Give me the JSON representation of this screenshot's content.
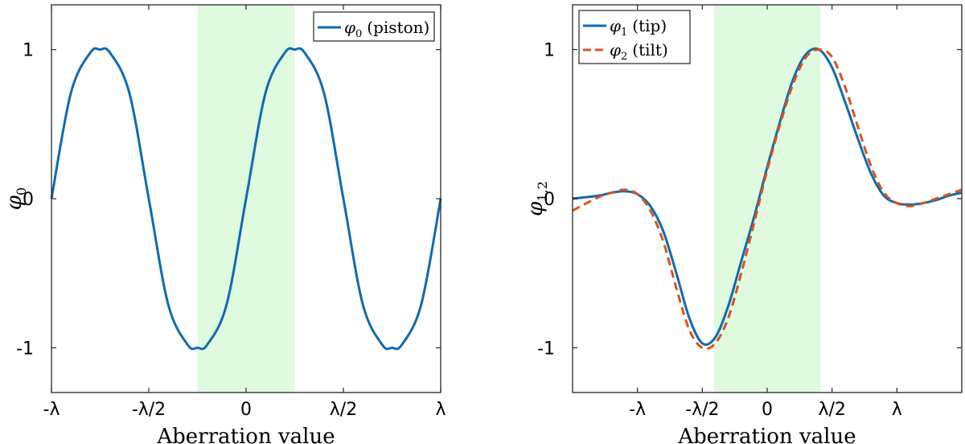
{
  "chart_data": [
    {
      "type": "line",
      "id": "left",
      "xlabel": "Aberration value",
      "ylabel": {
        "symbol": "φ",
        "sub": "0"
      },
      "xlim": [
        -1,
        1
      ],
      "ylim": [
        -1.3,
        1.3
      ],
      "xticks": [
        {
          "value": -1,
          "label": "-λ"
        },
        {
          "value": -0.5,
          "label": "-λ/2"
        },
        {
          "value": 0,
          "label": "0"
        },
        {
          "value": 0.5,
          "label": "λ/2"
        },
        {
          "value": 1,
          "label": "λ"
        }
      ],
      "yticks": [
        {
          "value": -1,
          "label": "-1"
        },
        {
          "value": 0,
          "label": "0"
        },
        {
          "value": 1,
          "label": "1"
        }
      ],
      "shaded_region": {
        "x0": -0.25,
        "x1": 0.25,
        "color": "#e0fae0"
      },
      "legend": {
        "position": "top-right"
      },
      "series": [
        {
          "name": "piston",
          "legend_symbol": "φ",
          "legend_sub": "0",
          "legend_text": "(piston)",
          "color": "#0e6bb0",
          "dash": "solid",
          "x": [
            -1.0,
            -0.9,
            -0.8,
            -0.75,
            -0.7,
            -0.6,
            -0.5,
            -0.4,
            -0.3,
            -0.25,
            -0.2,
            -0.1,
            0.0,
            0.1,
            0.2,
            0.25,
            0.3,
            0.4,
            0.5,
            0.6,
            0.7,
            0.75,
            0.8,
            0.9,
            1.0
          ],
          "y": [
            0.0,
            0.71,
            0.98,
            1.0,
            0.98,
            0.71,
            0.0,
            -0.71,
            -0.98,
            -1.0,
            -0.98,
            -0.71,
            0.0,
            0.71,
            0.98,
            1.0,
            0.98,
            0.71,
            0.0,
            -0.71,
            -0.98,
            -1.0,
            -0.98,
            -0.71,
            0.0
          ]
        }
      ]
    },
    {
      "type": "line",
      "id": "right",
      "xlabel": "Aberration value",
      "ylabel": {
        "symbol": "φ",
        "sub": "1,2"
      },
      "xlim": [
        -1.5,
        1.5
      ],
      "ylim": [
        -1.3,
        1.3
      ],
      "xticks": [
        {
          "value": -1,
          "label": "-λ"
        },
        {
          "value": -0.5,
          "label": "-λ/2"
        },
        {
          "value": 0,
          "label": "0"
        },
        {
          "value": 0.5,
          "label": "λ/2"
        },
        {
          "value": 1,
          "label": "λ"
        }
      ],
      "yticks": [
        {
          "value": -1,
          "label": "-1"
        },
        {
          "value": 0,
          "label": "0"
        },
        {
          "value": 1,
          "label": "1"
        }
      ],
      "shaded_region": {
        "x0": -0.41,
        "x1": 0.41,
        "color": "#e0fae0"
      },
      "legend": {
        "position": "top-left"
      },
      "series": [
        {
          "name": "tip",
          "legend_symbol": "φ",
          "legend_sub": "1",
          "legend_text": "(tip)",
          "color": "#0e6bb0",
          "dash": "solid",
          "x": [
            -1.5,
            -1.3,
            -1.2,
            -1.1,
            -1.0,
            -0.9,
            -0.8,
            -0.7,
            -0.6,
            -0.5,
            -0.4,
            -0.3,
            -0.2,
            -0.1,
            0.0,
            0.1,
            0.2,
            0.3,
            0.4,
            0.5,
            0.6,
            0.7,
            0.8,
            0.9,
            1.0,
            1.1,
            1.2,
            1.3,
            1.4,
            1.5
          ],
          "y": [
            0.0,
            0.02,
            0.04,
            0.05,
            0.03,
            -0.05,
            -0.22,
            -0.5,
            -0.8,
            -0.97,
            -0.93,
            -0.72,
            -0.42,
            -0.12,
            0.21,
            0.52,
            0.8,
            0.97,
            1.0,
            0.88,
            0.65,
            0.4,
            0.17,
            0.02,
            -0.03,
            -0.04,
            -0.03,
            -0.01,
            0.02,
            0.04
          ]
        },
        {
          "name": "tilt",
          "legend_symbol": "φ",
          "legend_sub": "2",
          "legend_text": "(tilt)",
          "color": "#d8531c",
          "dash": "dashed",
          "x": [
            -1.5,
            -1.3,
            -1.2,
            -1.1,
            -1.0,
            -0.9,
            -0.8,
            -0.7,
            -0.6,
            -0.5,
            -0.4,
            -0.3,
            -0.2,
            -0.1,
            0.0,
            0.1,
            0.2,
            0.3,
            0.4,
            0.5,
            0.6,
            0.7,
            0.8,
            0.9,
            1.0,
            1.1,
            1.2,
            1.3,
            1.4,
            1.5
          ],
          "y": [
            -0.08,
            0.01,
            0.04,
            0.06,
            0.03,
            -0.08,
            -0.29,
            -0.6,
            -0.88,
            -1.0,
            -0.97,
            -0.8,
            -0.5,
            -0.16,
            0.19,
            0.5,
            0.77,
            0.95,
            1.0,
            0.95,
            0.75,
            0.48,
            0.22,
            0.04,
            -0.03,
            -0.05,
            -0.03,
            0.0,
            0.03,
            0.06
          ]
        }
      ]
    }
  ]
}
